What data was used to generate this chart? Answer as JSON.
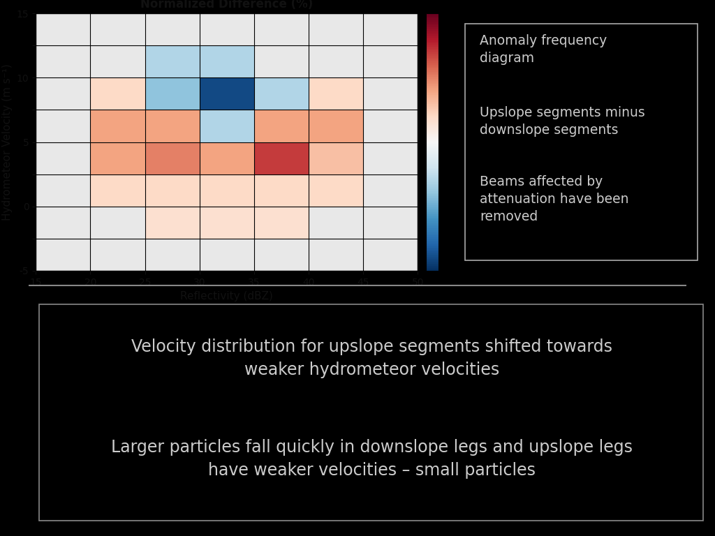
{
  "title": "Normalized Difference (%)",
  "xlabel": "Reflectivity (dBZ)",
  "ylabel": "Hydrometeor Velocity (m s⁻¹)",
  "x_edges": [
    15,
    20,
    25,
    30,
    35,
    40,
    45,
    50
  ],
  "y_edges": [
    -5,
    -2.5,
    0,
    2.5,
    5,
    7.5,
    10,
    12.5,
    15
  ],
  "vmin": -50,
  "vmax": 50,
  "grid_data_top_to_bottom": [
    [
      null,
      null,
      null,
      null,
      null,
      null,
      null
    ],
    [
      null,
      null,
      -15,
      -15,
      null,
      null,
      null
    ],
    [
      null,
      10,
      -20,
      -45,
      -15,
      10,
      null
    ],
    [
      null,
      20,
      20,
      -15,
      20,
      20,
      null
    ],
    [
      null,
      20,
      25,
      20,
      35,
      15,
      null
    ],
    [
      null,
      10,
      10,
      10,
      10,
      10,
      null
    ],
    [
      null,
      null,
      8,
      8,
      8,
      null,
      null
    ],
    [
      null,
      null,
      null,
      null,
      null,
      null,
      null
    ]
  ],
  "background_color": "#000000",
  "plot_bg_color": "#f0f0f0",
  "text_color_light": "#cccccc",
  "text_color_dark": "#111111",
  "colorbar_ticks": [
    -50,
    -40,
    -30,
    -20,
    -10,
    0,
    10,
    20,
    30,
    40,
    50
  ],
  "annotation_box_texts": [
    "Anomaly frequency\ndiagram",
    "Upslope segments minus\ndownslope segments",
    "Beams affected by\nattenuation have been\nremoved"
  ],
  "bottom_text_line1": "Velocity distribution for upslope segments shifted towards\nweaker hydrometeor velocities",
  "bottom_text_line2": "Larger particles fall quickly in downslope legs and upslope legs\nhave weaker velocities – small particles"
}
